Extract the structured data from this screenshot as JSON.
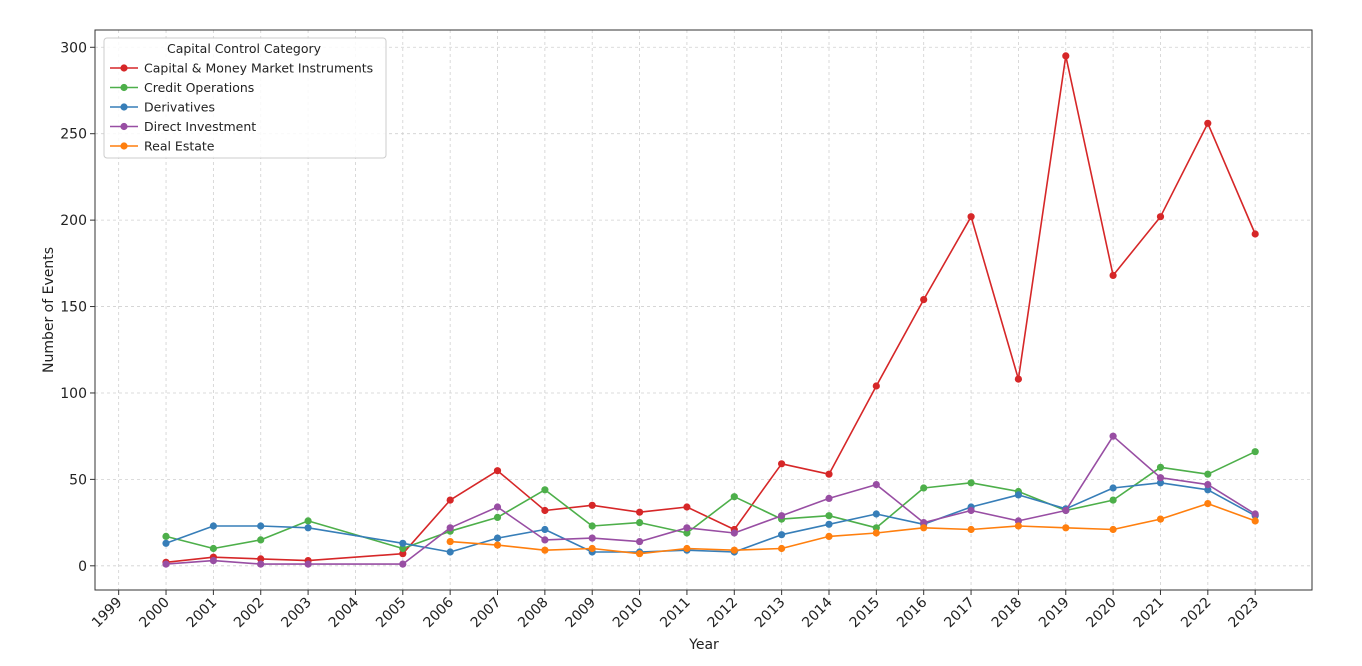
{
  "chart_data": {
    "type": "line",
    "xlabel": "Year",
    "ylabel": "Number of Events",
    "x_ticks": [
      "1999",
      "2000",
      "2001",
      "2002",
      "2003",
      "2004",
      "2005",
      "2006",
      "2007",
      "2008",
      "2009",
      "2010",
      "2011",
      "2012",
      "2013",
      "2014",
      "2015",
      "2016",
      "2017",
      "2018",
      "2019",
      "2020",
      "2021",
      "2022",
      "2023"
    ],
    "y_ticks": [
      0,
      50,
      100,
      150,
      200,
      250,
      300
    ],
    "xlim": [
      1998.5,
      2024.2
    ],
    "ylim": [
      -14,
      310
    ],
    "grid": true,
    "legend": {
      "title": "Capital Control Category",
      "placement": "top-left"
    },
    "series": [
      {
        "name": "Capital & Money Market Instruments",
        "color": "#d62728",
        "points": [
          [
            2000,
            2
          ],
          [
            2001,
            5
          ],
          [
            2002,
            4
          ],
          [
            2003,
            3
          ],
          [
            2005,
            7
          ],
          [
            2006,
            38
          ],
          [
            2007,
            55
          ],
          [
            2008,
            32
          ],
          [
            2009,
            35
          ],
          [
            2010,
            31
          ],
          [
            2011,
            34
          ],
          [
            2012,
            21
          ],
          [
            2013,
            59
          ],
          [
            2014,
            53
          ],
          [
            2015,
            104
          ],
          [
            2016,
            154
          ],
          [
            2017,
            202
          ],
          [
            2018,
            108
          ],
          [
            2019,
            295
          ],
          [
            2020,
            168
          ],
          [
            2021,
            202
          ],
          [
            2022,
            256
          ],
          [
            2023,
            192
          ]
        ]
      },
      {
        "name": "Credit Operations",
        "color": "#4daf4a",
        "points": [
          [
            2000,
            17
          ],
          [
            2001,
            10
          ],
          [
            2002,
            15
          ],
          [
            2003,
            26
          ],
          [
            2005,
            10
          ],
          [
            2006,
            20
          ],
          [
            2007,
            28
          ],
          [
            2008,
            44
          ],
          [
            2009,
            23
          ],
          [
            2010,
            25
          ],
          [
            2011,
            19
          ],
          [
            2012,
            40
          ],
          [
            2013,
            27
          ],
          [
            2014,
            29
          ],
          [
            2015,
            22
          ],
          [
            2016,
            45
          ],
          [
            2017,
            48
          ],
          [
            2018,
            43
          ],
          [
            2019,
            32
          ],
          [
            2020,
            38
          ],
          [
            2021,
            57
          ],
          [
            2022,
            53
          ],
          [
            2023,
            66
          ]
        ]
      },
      {
        "name": "Derivatives",
        "color": "#377eb8",
        "points": [
          [
            2000,
            13
          ],
          [
            2001,
            23
          ],
          [
            2002,
            23
          ],
          [
            2003,
            22
          ],
          [
            2005,
            13
          ],
          [
            2006,
            8
          ],
          [
            2007,
            16
          ],
          [
            2008,
            21
          ],
          [
            2009,
            8
          ],
          [
            2010,
            8
          ],
          [
            2011,
            9
          ],
          [
            2012,
            8
          ],
          [
            2013,
            18
          ],
          [
            2014,
            24
          ],
          [
            2015,
            30
          ],
          [
            2016,
            24
          ],
          [
            2017,
            34
          ],
          [
            2018,
            41
          ],
          [
            2019,
            33
          ],
          [
            2020,
            45
          ],
          [
            2021,
            48
          ],
          [
            2022,
            44
          ],
          [
            2023,
            29
          ]
        ]
      },
      {
        "name": "Direct Investment",
        "color": "#984ea3",
        "points": [
          [
            2000,
            1
          ],
          [
            2001,
            3
          ],
          [
            2002,
            1
          ],
          [
            2003,
            1
          ],
          [
            2005,
            1
          ],
          [
            2006,
            22
          ],
          [
            2007,
            34
          ],
          [
            2008,
            15
          ],
          [
            2009,
            16
          ],
          [
            2010,
            14
          ],
          [
            2011,
            22
          ],
          [
            2012,
            19
          ],
          [
            2013,
            29
          ],
          [
            2014,
            39
          ],
          [
            2015,
            47
          ],
          [
            2016,
            25
          ],
          [
            2017,
            32
          ],
          [
            2018,
            26
          ],
          [
            2019,
            32
          ],
          [
            2020,
            75
          ],
          [
            2021,
            51
          ],
          [
            2022,
            47
          ],
          [
            2023,
            30
          ]
        ]
      },
      {
        "name": "Real Estate",
        "color": "#ff7f0e",
        "points": [
          [
            2006,
            14
          ],
          [
            2007,
            12
          ],
          [
            2008,
            9
          ],
          [
            2009,
            10
          ],
          [
            2010,
            7
          ],
          [
            2011,
            10
          ],
          [
            2012,
            9
          ],
          [
            2013,
            10
          ],
          [
            2014,
            17
          ],
          [
            2015,
            19
          ],
          [
            2016,
            22
          ],
          [
            2017,
            21
          ],
          [
            2018,
            23
          ],
          [
            2019,
            22
          ],
          [
            2020,
            21
          ],
          [
            2021,
            27
          ],
          [
            2022,
            36
          ],
          [
            2023,
            26
          ]
        ]
      }
    ]
  }
}
